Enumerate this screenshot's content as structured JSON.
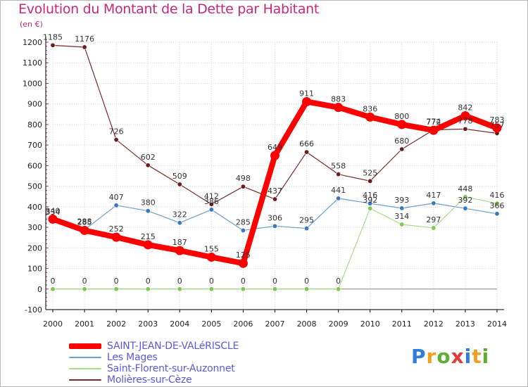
{
  "header": {
    "title": "Evolution du Montant de la Dette par Habitant",
    "subtitle": "(en €)"
  },
  "colors": {
    "title": "#c8287a",
    "legend_text": "#5a5ae0",
    "grid": "#d8d8d8",
    "axis": "#000000",
    "zero_line": "#888888"
  },
  "logo": {
    "letters": [
      {
        "char": "P",
        "color": "#2f7dd6"
      },
      {
        "char": "r",
        "color": "#f0a020"
      },
      {
        "char": "o",
        "color": "#60b030"
      },
      {
        "char": "x",
        "color": "#e03a3a"
      },
      {
        "char": "i",
        "color": "#2f7dd6"
      },
      {
        "char": "t",
        "color": "#f0a020"
      },
      {
        "char": "i",
        "color": "#60b030"
      }
    ]
  },
  "chart_data": {
    "type": "line",
    "title": "Evolution du Montant de la Dette par Habitant",
    "ylabel": "(en €)",
    "x": [
      "2000",
      "2001",
      "2002",
      "2003",
      "2004",
      "2005",
      "2006",
      "2007",
      "2008",
      "2009",
      "2010",
      "2011",
      "2012",
      "2013",
      "2014"
    ],
    "ylim": [
      -100,
      1200
    ],
    "yticks": [
      -100,
      0,
      100,
      200,
      300,
      400,
      500,
      600,
      700,
      800,
      900,
      1000,
      1100,
      1200
    ],
    "grid": "horizontal",
    "legend_position": "bottom-left",
    "series": [
      {
        "name": "Molières-sur-Cèze",
        "color": "#7a2a2a",
        "marker": "#6a1c1c",
        "width": 1.2,
        "values": [
          1185,
          1176,
          726,
          602,
          509,
          412,
          498,
          437,
          666,
          558,
          525,
          680,
          774,
          778,
          757
        ]
      },
      {
        "name": "Les Mages",
        "color": "#6a9fd4",
        "marker": "#3a78c0",
        "width": 1.2,
        "values": [
          334,
          288,
          407,
          380,
          322,
          386,
          285,
          306,
          295,
          441,
          416,
          393,
          417,
          392,
          366
        ]
      },
      {
        "name": "Saint-Florent-sur-Auzonnet",
        "color": "#a8dc88",
        "marker": "#7cc850",
        "width": 1.2,
        "values": [
          0,
          0,
          0,
          0,
          0,
          0,
          0,
          0,
          0,
          0,
          392,
          314,
          297,
          448,
          416
        ]
      },
      {
        "name": "SAINT-JEAN-DE-VALéRISCLE",
        "color": "#ff0000",
        "marker": "#ff0000",
        "width": 8,
        "values": [
          340,
          285,
          252,
          215,
          187,
          155,
          125,
          649,
          911,
          883,
          836,
          800,
          772,
          842,
          783
        ]
      }
    ],
    "legend_order": [
      "SAINT-JEAN-DE-VALéRISCLE",
      "Les Mages",
      "Saint-Florent-sur-Auzonnet",
      "Molières-sur-Cèze"
    ],
    "data_labels": [
      {
        "series": "Molières-sur-Cèze",
        "labels": [
          "1185",
          "1176",
          "726",
          "602",
          "509",
          "412",
          "498",
          "437",
          "666",
          "558",
          "525",
          "680",
          "774",
          "778",
          "757"
        ]
      },
      {
        "series": "Les Mages",
        "labels": [
          "334",
          "288",
          "407",
          "380",
          "322",
          "386",
          "285",
          "306",
          "295",
          "441",
          "416",
          "393",
          "417",
          "392",
          "366"
        ]
      },
      {
        "series": "Saint-Florent-sur-Auzonnet",
        "labels": [
          "0",
          "0",
          "0",
          "0",
          "0",
          "0",
          "0",
          "0",
          "0",
          "0",
          "392",
          "314",
          "297",
          "448",
          "416"
        ]
      },
      {
        "series": "SAINT-JEAN-DE-VALéRISCLE",
        "labels": [
          "340",
          "285",
          "252",
          "215",
          "187",
          "155",
          "125",
          "649",
          "911",
          "883",
          "836",
          "800",
          "772",
          "842",
          "783"
        ]
      }
    ]
  }
}
